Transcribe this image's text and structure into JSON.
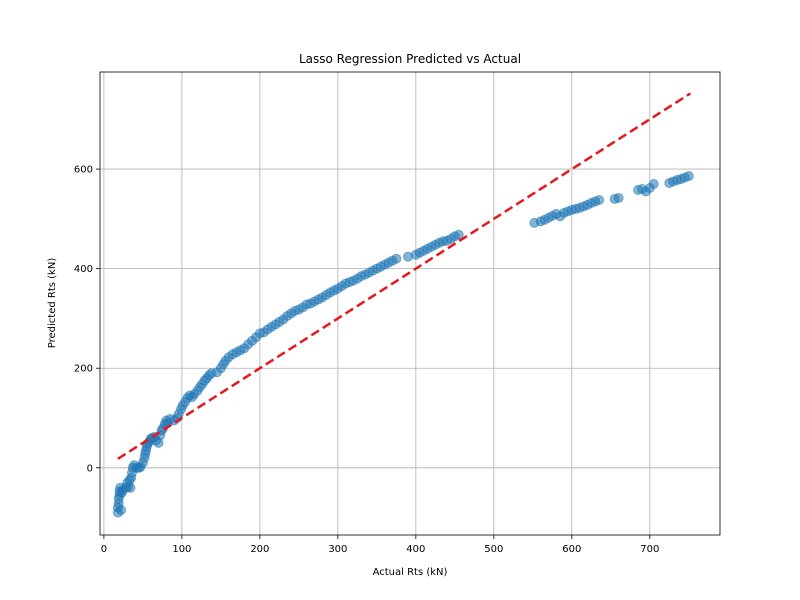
{
  "chart_data": {
    "type": "scatter",
    "title": "Lasso Regression Predicted vs Actual",
    "xlabel": "Actual Rts (kN)",
    "ylabel": "Predicted Rts (kN)",
    "xlim": [
      -5,
      790
    ],
    "ylim": [
      -135,
      795
    ],
    "xticks": [
      0,
      100,
      200,
      300,
      400,
      500,
      600,
      700
    ],
    "yticks": [
      0,
      200,
      400,
      600
    ],
    "grid": true,
    "colors": {
      "points": "#1f77b4",
      "reference_line": "#e8171b",
      "grid": "#b0b0b0"
    },
    "reference_line": {
      "style": "dashed",
      "x": [
        18,
        752
      ],
      "y": [
        18,
        752
      ]
    },
    "series": [
      {
        "points": [
          [
            18,
            -90
          ],
          [
            18,
            -80
          ],
          [
            19,
            -72
          ],
          [
            19,
            -62
          ],
          [
            20,
            -55
          ],
          [
            20,
            -47
          ],
          [
            21,
            -40
          ],
          [
            22,
            -85
          ],
          [
            23,
            -50
          ],
          [
            24,
            -45
          ],
          [
            28,
            -40
          ],
          [
            30,
            -30
          ],
          [
            31,
            -38
          ],
          [
            33,
            -25
          ],
          [
            34,
            -40
          ],
          [
            35,
            -20
          ],
          [
            36,
            -10
          ],
          [
            37,
            0
          ],
          [
            39,
            5
          ],
          [
            42,
            0
          ],
          [
            45,
            0
          ],
          [
            47,
            2
          ],
          [
            50,
            10
          ],
          [
            52,
            20
          ],
          [
            53,
            28
          ],
          [
            54,
            35
          ],
          [
            55,
            42
          ],
          [
            56,
            48
          ],
          [
            58,
            52
          ],
          [
            60,
            58
          ],
          [
            62,
            60
          ],
          [
            65,
            62
          ],
          [
            67,
            55
          ],
          [
            70,
            50
          ],
          [
            72,
            65
          ],
          [
            74,
            75
          ],
          [
            76,
            80
          ],
          [
            78,
            88
          ],
          [
            80,
            95
          ],
          [
            82,
            90
          ],
          [
            85,
            98
          ],
          [
            90,
            95
          ],
          [
            94,
            100
          ],
          [
            96,
            108
          ],
          [
            99,
            118
          ],
          [
            101,
            125
          ],
          [
            104,
            132
          ],
          [
            107,
            140
          ],
          [
            110,
            145
          ],
          [
            113,
            142
          ],
          [
            116,
            148
          ],
          [
            120,
            155
          ],
          [
            123,
            162
          ],
          [
            126,
            168
          ],
          [
            129,
            175
          ],
          [
            132,
            180
          ],
          [
            135,
            186
          ],
          [
            138,
            190
          ],
          [
            145,
            192
          ],
          [
            150,
            200
          ],
          [
            153,
            208
          ],
          [
            156,
            215
          ],
          [
            160,
            222
          ],
          [
            165,
            228
          ],
          [
            170,
            232
          ],
          [
            175,
            236
          ],
          [
            180,
            240
          ],
          [
            185,
            248
          ],
          [
            190,
            255
          ],
          [
            195,
            262
          ],
          [
            200,
            270
          ],
          [
            205,
            272
          ],
          [
            210,
            278
          ],
          [
            215,
            283
          ],
          [
            220,
            288
          ],
          [
            225,
            293
          ],
          [
            230,
            298
          ],
          [
            235,
            305
          ],
          [
            240,
            310
          ],
          [
            245,
            315
          ],
          [
            250,
            318
          ],
          [
            255,
            322
          ],
          [
            260,
            328
          ],
          [
            265,
            330
          ],
          [
            270,
            334
          ],
          [
            275,
            338
          ],
          [
            280,
            342
          ],
          [
            285,
            347
          ],
          [
            290,
            352
          ],
          [
            295,
            356
          ],
          [
            300,
            360
          ],
          [
            305,
            365
          ],
          [
            310,
            370
          ],
          [
            315,
            373
          ],
          [
            320,
            376
          ],
          [
            325,
            380
          ],
          [
            330,
            385
          ],
          [
            335,
            388
          ],
          [
            340,
            392
          ],
          [
            345,
            396
          ],
          [
            350,
            400
          ],
          [
            355,
            404
          ],
          [
            360,
            408
          ],
          [
            365,
            412
          ],
          [
            370,
            416
          ],
          [
            375,
            420
          ],
          [
            390,
            424
          ],
          [
            400,
            428
          ],
          [
            405,
            432
          ],
          [
            410,
            436
          ],
          [
            415,
            440
          ],
          [
            420,
            444
          ],
          [
            425,
            448
          ],
          [
            430,
            452
          ],
          [
            435,
            455
          ],
          [
            440,
            456
          ],
          [
            445,
            460
          ],
          [
            450,
            465
          ],
          [
            455,
            468
          ],
          [
            552,
            492
          ],
          [
            560,
            495
          ],
          [
            565,
            498
          ],
          [
            570,
            502
          ],
          [
            575,
            506
          ],
          [
            580,
            510
          ],
          [
            585,
            505
          ],
          [
            590,
            512
          ],
          [
            595,
            515
          ],
          [
            600,
            518
          ],
          [
            605,
            520
          ],
          [
            610,
            522
          ],
          [
            615,
            525
          ],
          [
            620,
            528
          ],
          [
            625,
            532
          ],
          [
            630,
            535
          ],
          [
            635,
            538
          ],
          [
            655,
            540
          ],
          [
            660,
            542
          ],
          [
            685,
            558
          ],
          [
            690,
            560
          ],
          [
            695,
            555
          ],
          [
            700,
            562
          ],
          [
            705,
            570
          ],
          [
            725,
            572
          ],
          [
            730,
            575
          ],
          [
            735,
            578
          ],
          [
            740,
            580
          ],
          [
            745,
            583
          ],
          [
            750,
            586
          ]
        ]
      }
    ]
  }
}
